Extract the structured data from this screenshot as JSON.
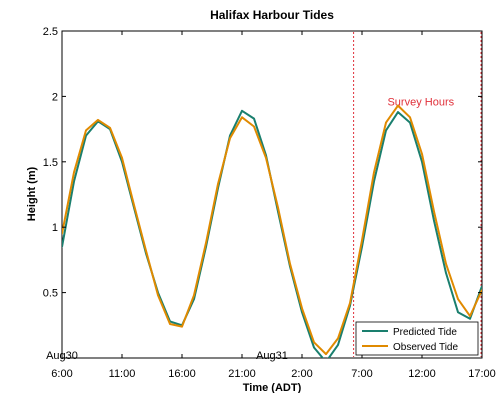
{
  "chart_data": {
    "type": "line",
    "title": "Halifax Harbour Tides",
    "xlabel": "Time (ADT)",
    "ylabel": "Height (m)",
    "xlim": [
      0,
      35
    ],
    "ylim": [
      0,
      2.5
    ],
    "grid": false,
    "legend_position": "bottom-right",
    "x_ticks": [
      {
        "x": 0,
        "label": "6:00"
      },
      {
        "x": 5,
        "label": "11:00"
      },
      {
        "x": 10,
        "label": "16:00"
      },
      {
        "x": 15,
        "label": "21:00"
      },
      {
        "x": 20,
        "label": "2:00"
      },
      {
        "x": 25,
        "label": "7:00"
      },
      {
        "x": 30,
        "label": "12:00"
      },
      {
        "x": 35,
        "label": "17:00"
      }
    ],
    "y_ticks": [
      {
        "y": 0.5,
        "label": "0.5"
      },
      {
        "y": 1,
        "label": "1"
      },
      {
        "y": 1.5,
        "label": "1.5"
      },
      {
        "y": 2,
        "label": "2"
      },
      {
        "y": 2.5,
        "label": "2.5"
      }
    ],
    "day_labels": [
      {
        "x": 0,
        "label": "Aug30"
      },
      {
        "x": 18,
        "label": "Aug31"
      }
    ],
    "survey": {
      "label": "Survey Hours",
      "x_start": 24.3,
      "x_end": 35,
      "color": "#e0303a"
    },
    "x": [
      0,
      1,
      2,
      3,
      4,
      5,
      6,
      7,
      8,
      9,
      10,
      11,
      12,
      13,
      14,
      15,
      16,
      17,
      18,
      19,
      20,
      21,
      22,
      23,
      24,
      25,
      26,
      27,
      28,
      29,
      30,
      31,
      32,
      33,
      34,
      35
    ],
    "series": [
      {
        "name": "Predicted Tide",
        "color": "#1a7f6e",
        "values": [
          0.85,
          1.35,
          1.7,
          1.81,
          1.75,
          1.5,
          1.15,
          0.8,
          0.5,
          0.28,
          0.25,
          0.45,
          0.85,
          1.3,
          1.7,
          1.89,
          1.83,
          1.55,
          1.12,
          0.7,
          0.35,
          0.08,
          -0.03,
          0.1,
          0.4,
          0.85,
          1.35,
          1.74,
          1.88,
          1.8,
          1.5,
          1.05,
          0.65,
          0.35,
          0.3,
          0.55
        ]
      },
      {
        "name": "Observed Tide",
        "color": "#e08a00",
        "values": [
          0.95,
          1.42,
          1.74,
          1.82,
          1.76,
          1.53,
          1.17,
          0.82,
          0.48,
          0.26,
          0.24,
          0.48,
          0.88,
          1.33,
          1.68,
          1.84,
          1.77,
          1.53,
          1.15,
          0.72,
          0.38,
          0.12,
          0.03,
          0.15,
          0.42,
          0.9,
          1.42,
          1.8,
          1.93,
          1.84,
          1.56,
          1.12,
          0.72,
          0.45,
          0.32,
          0.52
        ]
      }
    ]
  }
}
